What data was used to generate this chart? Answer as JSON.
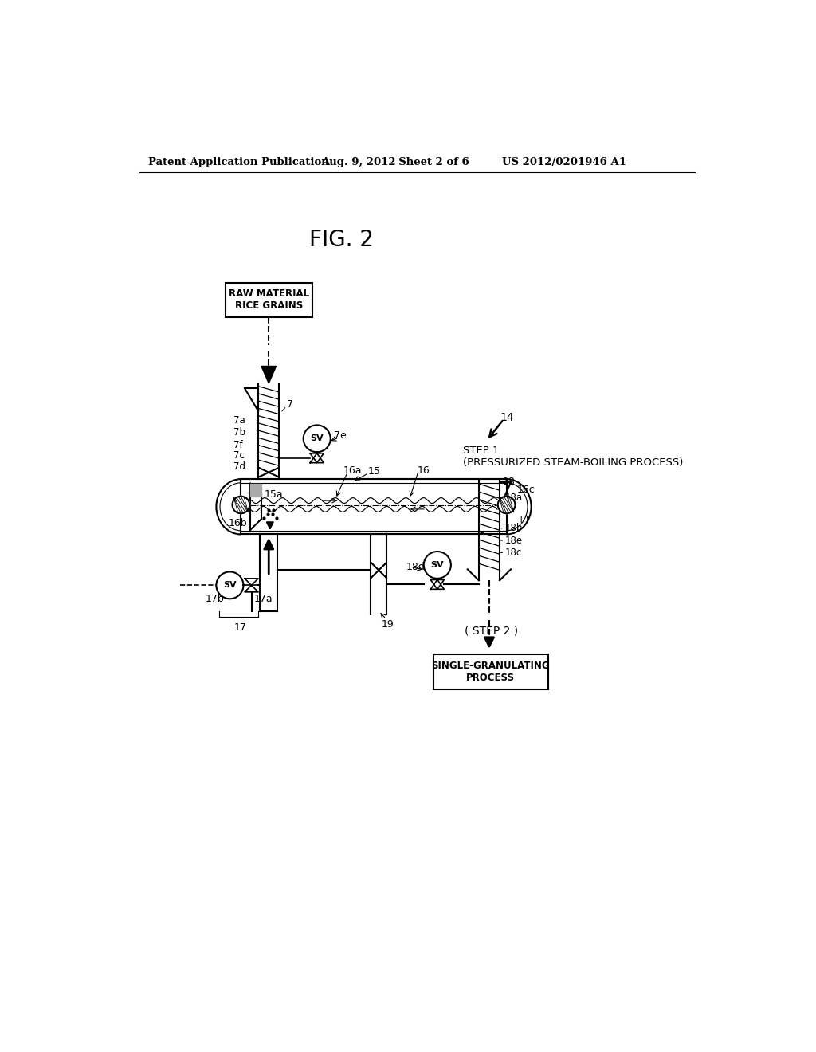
{
  "bg_color": "#ffffff",
  "header_left": "Patent Application Publication",
  "header_mid": "Aug. 9, 2012   Sheet 2 of 6",
  "header_right": "US 2012/0201946 A1",
  "fig_label": "FIG. 2",
  "step1_num": "14",
  "step1_text": "STEP 1\n(PRESSURIZED STEAM-BOILING PROCESS)",
  "step2_text": "( STEP 2 )",
  "box_top": "RAW MATERIAL\nRICE GRAINS",
  "box_bottom": "SINGLE-GRANULATING\nPROCESS"
}
